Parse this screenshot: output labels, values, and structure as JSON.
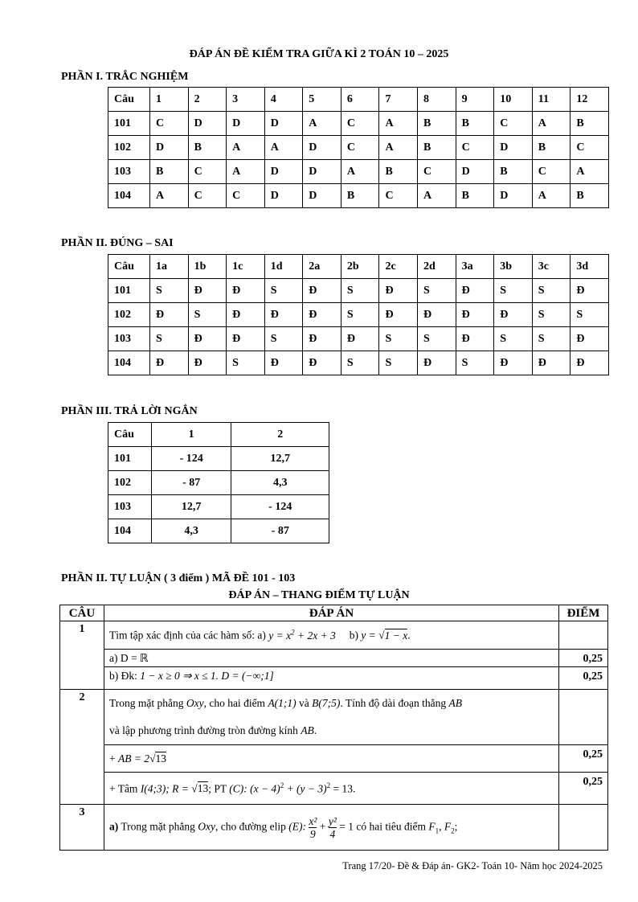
{
  "title": "ĐÁP ÁN ĐỀ KIỂM TRA GIỮA KÌ 2 TOÁN 10 – 2025",
  "part1": {
    "heading": "PHẦN I. TRẮC NGHIỆM",
    "header": [
      "Câu",
      "1",
      "2",
      "3",
      "4",
      "5",
      "6",
      "7",
      "8",
      "9",
      "10",
      "11",
      "12"
    ],
    "rows": [
      [
        "101",
        "C",
        "D",
        "D",
        "D",
        "A",
        "C",
        "A",
        "B",
        "B",
        "C",
        "A",
        "B"
      ],
      [
        "102",
        "D",
        "B",
        "A",
        "A",
        "D",
        "C",
        "A",
        "B",
        "C",
        "D",
        "B",
        "C"
      ],
      [
        "103",
        "B",
        "C",
        "A",
        "D",
        "D",
        "A",
        "B",
        "C",
        "D",
        "B",
        "C",
        "A"
      ],
      [
        "104",
        "A",
        "C",
        "C",
        "D",
        "D",
        "B",
        "C",
        "A",
        "B",
        "D",
        "A",
        "B"
      ]
    ]
  },
  "part2": {
    "heading": "PHẦN II. ĐÚNG – SAI",
    "header": [
      "Câu",
      "1a",
      "1b",
      "1c",
      "1d",
      "2a",
      "2b",
      "2c",
      "2d",
      "3a",
      "3b",
      "3c",
      "3d"
    ],
    "rows": [
      [
        "101",
        "S",
        "Đ",
        "Đ",
        "S",
        "Đ",
        "S",
        "Đ",
        "S",
        "Đ",
        "S",
        "S",
        "Đ"
      ],
      [
        "102",
        "Đ",
        "S",
        "Đ",
        "Đ",
        "Đ",
        "S",
        "Đ",
        "Đ",
        "Đ",
        "Đ",
        "S",
        "S"
      ],
      [
        "103",
        "S",
        "Đ",
        "Đ",
        "S",
        "Đ",
        "Đ",
        "S",
        "S",
        "Đ",
        "S",
        "S",
        "Đ"
      ],
      [
        "104",
        "Đ",
        "Đ",
        "S",
        "Đ",
        "Đ",
        "S",
        "S",
        "Đ",
        "S",
        "Đ",
        "Đ",
        "Đ"
      ]
    ]
  },
  "part3": {
    "heading": "PHẦN III. TRẢ LỜI NGẮN",
    "header": [
      "Câu",
      "1",
      "2"
    ],
    "rows": [
      [
        "101",
        "- 124",
        "12,7"
      ],
      [
        "102",
        "- 87",
        "4,3"
      ],
      [
        "103",
        "12,7",
        "- 124"
      ],
      [
        "104",
        "4,3",
        "- 87"
      ]
    ]
  },
  "part4": {
    "heading": "PHẦN II. TỰ LUẬN ( 3 điểm ) MÃ ĐỀ 101 - 103",
    "subheading": "ĐÁP ÁN – THANG ĐIỂM TỰ LUẬN",
    "col_headers": [
      "CÂU",
      "ĐÁP ÁN",
      "ĐIỂM"
    ],
    "q1": {
      "num": "1",
      "prompt": "Tìm tập xác định của các hàm số: a)",
      "fa": "y = x",
      "fa2": "+ 2x + 3",
      "bpart": "b)",
      "fb": "y = ",
      "fb_root": "1 − x",
      "a": "a) D = ℝ",
      "a_pts": "0,25",
      "b_lbl": "b) Đk:",
      "b": "1 − x ≥ 0 ⇒ x ≤ 1. D = (−∞;1]",
      "b_pts": "0,25"
    },
    "q2": {
      "num": "2",
      "line1_a": "Trong mặt phẳng",
      "oxy": "Oxy",
      "line1_b": ", cho hai điểm",
      "A": "A(1;1)",
      "va": "và",
      "B": "B(7;5)",
      "line1_c": ". Tính độ dài đoạn thẳng",
      "AB": "AB",
      "line2": "và lập phương trình đường tròn đường kính",
      "AB2": "AB",
      "s1_pre": "+",
      "s1": "AB = 2",
      "s1_root": "13",
      "s1_pts": "0,25",
      "s2_pre": "+ Tâm",
      "s2_I": "I(4;3); R = ",
      "s2_root": "13",
      "s2_mid": "; PT",
      "s2_eq": "(C): (x − 4)",
      "s2_eq2": "+ (y − 3)",
      "s2_eq3": "= 13.",
      "s2_pts": "0,25",
      "sup2": "2"
    },
    "q3": {
      "num": "3",
      "lbl": "a)",
      "t1": "Trong mặt phẳng",
      "oxy": "Oxy",
      "t2": ", cho đường elip",
      "E": "(E):",
      "n1": "x²",
      "d1": "9",
      "n2": "y²",
      "d2": "4",
      "eq": "= 1",
      "t3": "có hai tiêu điểm",
      "F": "F",
      "one": "1",
      "two": "2"
    }
  },
  "footer": "Trang 17/20- Đề & Đáp án- GK2- Toán 10- Năm học 2024-2025"
}
